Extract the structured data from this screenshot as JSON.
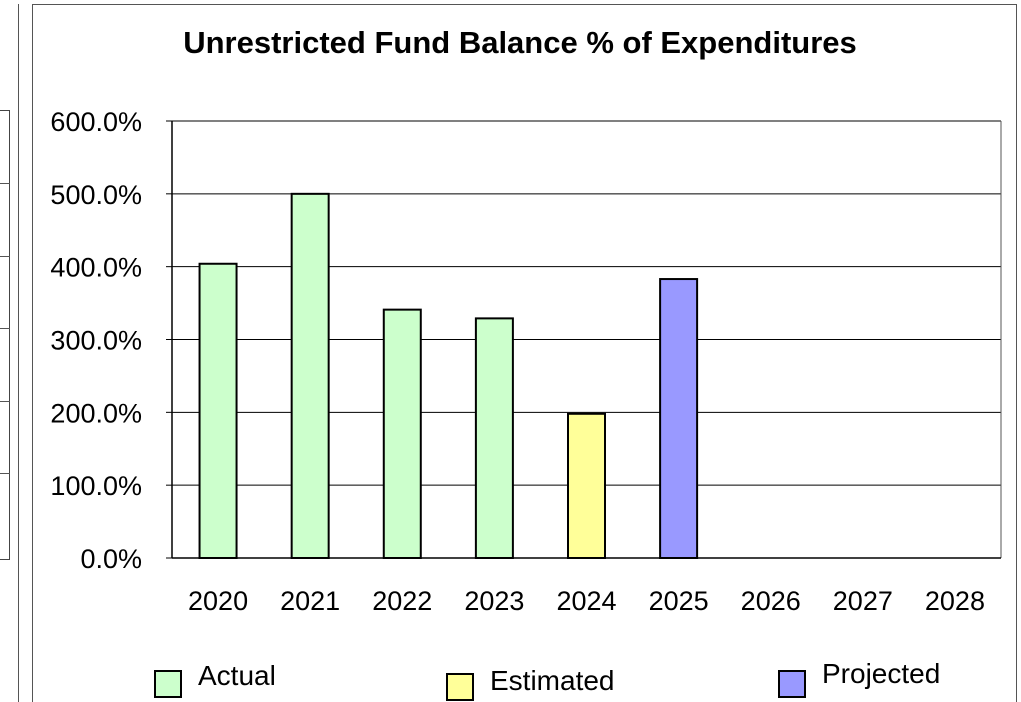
{
  "chart_data": {
    "type": "bar",
    "title": "Unrestricted Fund Balance % of Expenditures",
    "categories": [
      "2020",
      "2021",
      "2022",
      "2023",
      "2024",
      "2025",
      "2026",
      "2027",
      "2028"
    ],
    "values": [
      404,
      500,
      341,
      329,
      198,
      383,
      null,
      null,
      null
    ],
    "status": [
      "Actual",
      "Actual",
      "Actual",
      "Actual",
      "Estimated",
      "Projected",
      null,
      null,
      null
    ],
    "ylim": [
      0,
      600
    ],
    "yticks": [
      "0.0%",
      "100.0%",
      "200.0%",
      "300.0%",
      "400.0%",
      "500.0%",
      "600.0%"
    ],
    "grid": true,
    "legend_position": "bottom",
    "legend": [
      {
        "label": "Actual",
        "color": "#ccffcc"
      },
      {
        "label": "Estimated",
        "color": "#ffff99"
      },
      {
        "label": "Projected",
        "color": "#9999ff"
      }
    ]
  }
}
